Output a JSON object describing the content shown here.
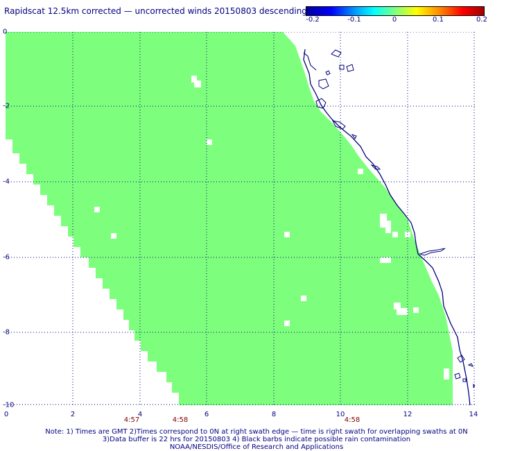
{
  "title": "Rapidscat 12.5km corrected — uncorrected winds 20150803 descending",
  "colorbar": {
    "labels": [
      "-0.2",
      "-0.1",
      "0",
      "0.1",
      "0.2"
    ],
    "range": [
      -0.2,
      0.2
    ]
  },
  "map": {
    "x_ticks": [
      "0",
      "2",
      "4",
      "6",
      "8",
      "10",
      "12",
      "14"
    ],
    "y_ticks": [
      "0",
      "-2",
      "-4",
      "-6",
      "-8",
      "-10"
    ],
    "x_range": [
      0,
      14
    ],
    "y_range": [
      -10,
      0
    ],
    "swath_color": "#7dff7d",
    "coast_color": "#00007a",
    "grid_color": "#000080",
    "swath_value": "0"
  },
  "swath_times": [
    "4:57",
    "4:58",
    "4:58"
  ],
  "notes": [
    "Note: 1) Times are GMT 2)Times correspond to 0N at right swath edge — time is right swath for overlapping swaths at 0N",
    "3)Data buffer is 22 hrs for 20150803 4) Black barbs indicate possible rain contamination",
    "NOAA/NESDIS/Office of Research and Applications"
  ]
}
